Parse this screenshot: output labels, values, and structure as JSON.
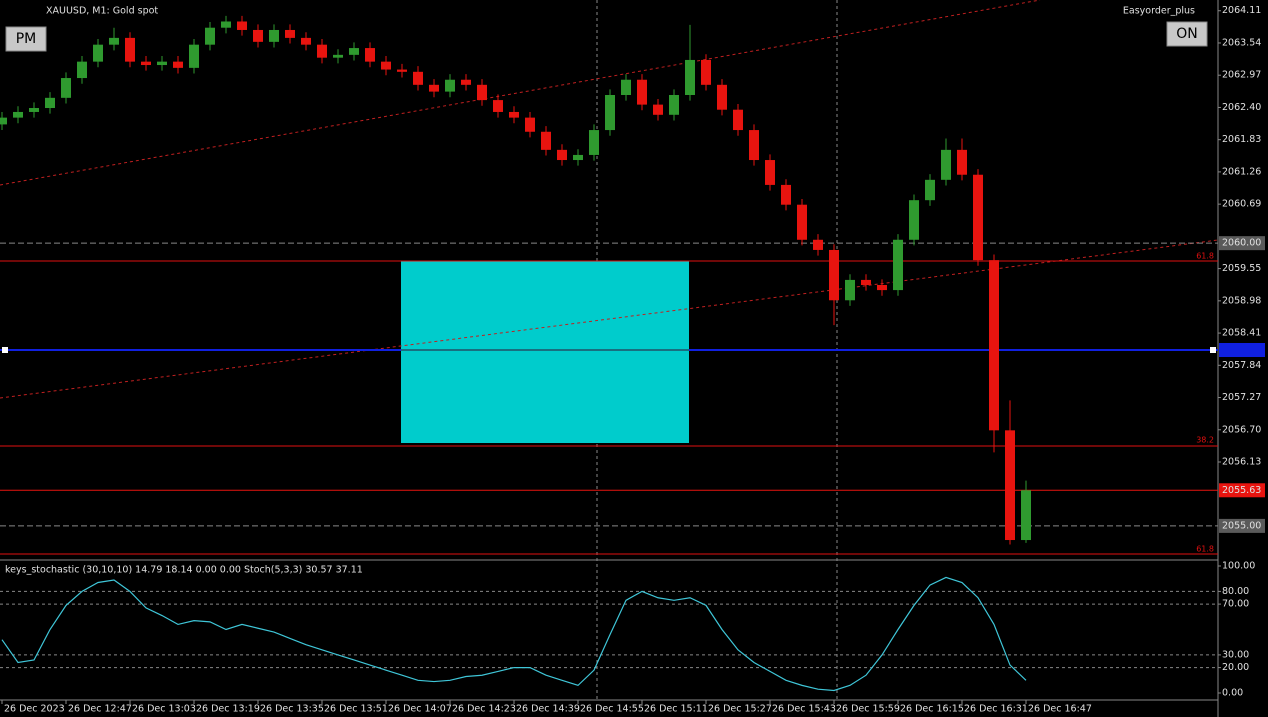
{
  "chart_data": [
    {
      "type": "candlestick",
      "title": "XAUUSD, M1:  Gold spot",
      "annotations": [
        "Easyorder_plus",
        "PM",
        "ON",
        "61.8",
        "38.2",
        "61.8"
      ],
      "categories": [
        "26 Dec 2023",
        null,
        null,
        null,
        "26 Dec 12:47",
        null,
        null,
        null,
        "26 Dec 13:03",
        null,
        null,
        null,
        "26 Dec 13:19",
        null,
        null,
        null,
        "26 Dec 13:35",
        null,
        null,
        null,
        "26 Dec 13:51",
        null,
        null,
        null,
        "26 Dec 14:07",
        null,
        null,
        null,
        "26 Dec 14:23",
        null,
        null,
        null,
        "26 Dec 14:39",
        null,
        null,
        null,
        "26 Dec 14:55",
        null,
        null,
        null,
        "26 Dec 15:11",
        null,
        null,
        null,
        "26 Dec 15:27",
        null,
        null,
        null,
        "26 Dec 15:43",
        null,
        null,
        null,
        "26 Dec 15:59",
        null,
        null,
        null,
        "26 Dec 16:15",
        null,
        null,
        null,
        "26 Dec 16:31",
        null,
        null,
        null,
        "26 Dec 16:47"
      ],
      "open": [
        2062.1,
        2062.22,
        2062.32,
        2062.39,
        2062.57,
        2062.92,
        2063.21,
        2063.51,
        2063.63,
        2063.21,
        2063.15,
        2063.21,
        2063.1,
        2063.51,
        2063.81,
        2063.92,
        2063.77,
        2063.56,
        2063.77,
        2063.63,
        2063.51,
        2063.28,
        2063.33,
        2063.45,
        2063.21,
        2063.07,
        2063.03,
        2062.8,
        2062.68,
        2062.89,
        2062.8,
        2062.53,
        2062.32,
        2062.22,
        2061.97,
        2061.65,
        2061.47,
        2061.56,
        2062.0,
        2062.62,
        2062.89,
        2062.45,
        2062.27,
        2062.62,
        2063.24,
        2062.8,
        2062.36,
        2062.0,
        2061.47,
        2061.03,
        2060.68,
        2060.06,
        2059.88,
        2058.99,
        2059.35,
        2059.26,
        2059.17,
        2060.06,
        2060.76,
        2061.12,
        2061.65,
        2061.21,
        2059.7,
        2056.69,
        2054.75
      ],
      "high": [
        2062.32,
        2062.42,
        2062.49,
        2062.67,
        2063.02,
        2063.31,
        2063.61,
        2063.81,
        2063.73,
        2063.31,
        2063.31,
        2063.31,
        2063.61,
        2063.91,
        2064.02,
        2064.02,
        2063.87,
        2063.87,
        2063.87,
        2063.73,
        2063.61,
        2063.43,
        2063.55,
        2063.55,
        2063.31,
        2063.17,
        2063.13,
        2062.9,
        2062.99,
        2062.99,
        2062.9,
        2062.63,
        2062.42,
        2062.32,
        2062.07,
        2061.75,
        2061.66,
        2062.1,
        2062.72,
        2062.99,
        2062.99,
        2062.55,
        2062.72,
        2063.86,
        2063.34,
        2062.9,
        2062.46,
        2062.1,
        2061.57,
        2061.13,
        2060.78,
        2060.16,
        2059.98,
        2059.45,
        2059.45,
        2059.36,
        2060.16,
        2060.86,
        2061.22,
        2061.85,
        2061.85,
        2061.31,
        2059.8,
        2057.22,
        2055.8
      ],
      "low": [
        2062.0,
        2062.12,
        2062.22,
        2062.29,
        2062.47,
        2062.82,
        2063.11,
        2063.41,
        2063.11,
        2063.05,
        2063.05,
        2063.0,
        2063.0,
        2063.41,
        2063.71,
        2063.67,
        2063.46,
        2063.46,
        2063.53,
        2063.41,
        2063.18,
        2063.18,
        2063.23,
        2063.11,
        2062.97,
        2062.93,
        2062.7,
        2062.58,
        2062.58,
        2062.7,
        2062.43,
        2062.22,
        2062.12,
        2061.87,
        2061.55,
        2061.37,
        2061.37,
        2061.46,
        2061.9,
        2062.52,
        2062.35,
        2062.17,
        2062.17,
        2062.52,
        2062.7,
        2062.26,
        2061.9,
        2061.37,
        2060.93,
        2060.58,
        2059.96,
        2059.78,
        2058.55,
        2058.89,
        2059.16,
        2059.07,
        2059.07,
        2059.96,
        2060.66,
        2061.02,
        2061.11,
        2059.6,
        2056.3,
        2054.67,
        2054.7
      ],
      "close": [
        2062.22,
        2062.32,
        2062.39,
        2062.57,
        2062.92,
        2063.21,
        2063.51,
        2063.63,
        2063.21,
        2063.15,
        2063.21,
        2063.1,
        2063.51,
        2063.81,
        2063.92,
        2063.77,
        2063.56,
        2063.77,
        2063.63,
        2063.51,
        2063.28,
        2063.33,
        2063.45,
        2063.21,
        2063.07,
        2063.03,
        2062.8,
        2062.68,
        2062.89,
        2062.8,
        2062.53,
        2062.32,
        2062.22,
        2061.97,
        2061.65,
        2061.47,
        2061.56,
        2062.0,
        2062.62,
        2062.89,
        2062.45,
        2062.27,
        2062.62,
        2063.24,
        2062.8,
        2062.36,
        2062.0,
        2061.47,
        2061.03,
        2060.68,
        2060.06,
        2059.88,
        2058.99,
        2059.35,
        2059.26,
        2059.17,
        2060.06,
        2060.76,
        2061.12,
        2061.65,
        2061.21,
        2059.7,
        2056.69,
        2054.75,
        2055.63
      ],
      "up_color": "#2f9a2f",
      "down_color": "#e8140f",
      "ylim": [
        2054.45,
        2064.3
      ],
      "yticks": [
        2064.11,
        2063.54,
        2062.97,
        {
          "value": 2062.4,
          "label": "2062.40"
        },
        2061.83,
        2061.26,
        2060.69,
        2059.55,
        2058.98,
        2058.41,
        2057.84,
        2057.27,
        {
          "value": 2056.7,
          "label": "2056.70"
        },
        2056.13
      ],
      "price_labels": [
        {
          "value": 2060.0,
          "label": "2060.00",
          "color": "#5a5a5a"
        },
        {
          "value": 2055.63,
          "label": "2055.63",
          "color": "#e8140f"
        },
        {
          "value": 2055.0,
          "label": "2055.00",
          "color": "#5a5a5a"
        }
      ]
    },
    {
      "type": "line",
      "title": "keys_stochastic (30,10,10) 14.79 18.14 0.00 0.00 Stoch(5,3,3) 30.57 37.11",
      "series": [
        {
          "color": "#3fc6d8",
          "values": [
            42,
            24,
            26,
            50,
            69,
            80,
            87,
            89,
            80,
            67,
            61,
            54,
            57,
            56,
            50,
            54,
            51,
            48,
            43,
            38,
            34,
            30,
            26,
            22,
            18,
            14,
            10,
            9,
            10,
            13,
            14,
            17,
            20,
            20,
            14,
            10,
            6,
            18,
            46,
            73,
            80,
            75,
            73,
            75,
            69,
            50,
            34,
            24,
            17,
            10,
            6,
            3,
            2,
            6,
            14,
            30,
            50,
            69,
            85,
            91,
            87,
            75,
            54,
            22,
            10
          ]
        }
      ],
      "ylim": [
        0,
        100
      ],
      "yticks": [
        {
          "value": 100,
          "label": "100.00"
        },
        {
          "value": 80,
          "label": "80.00"
        },
        {
          "value": 70,
          "label": "70.00"
        },
        {
          "value": 30,
          "label": "30.00"
        },
        {
          "value": 20,
          "label": "20.00"
        },
        {
          "value": 0,
          "label": "0.00"
        }
      ]
    }
  ]
}
